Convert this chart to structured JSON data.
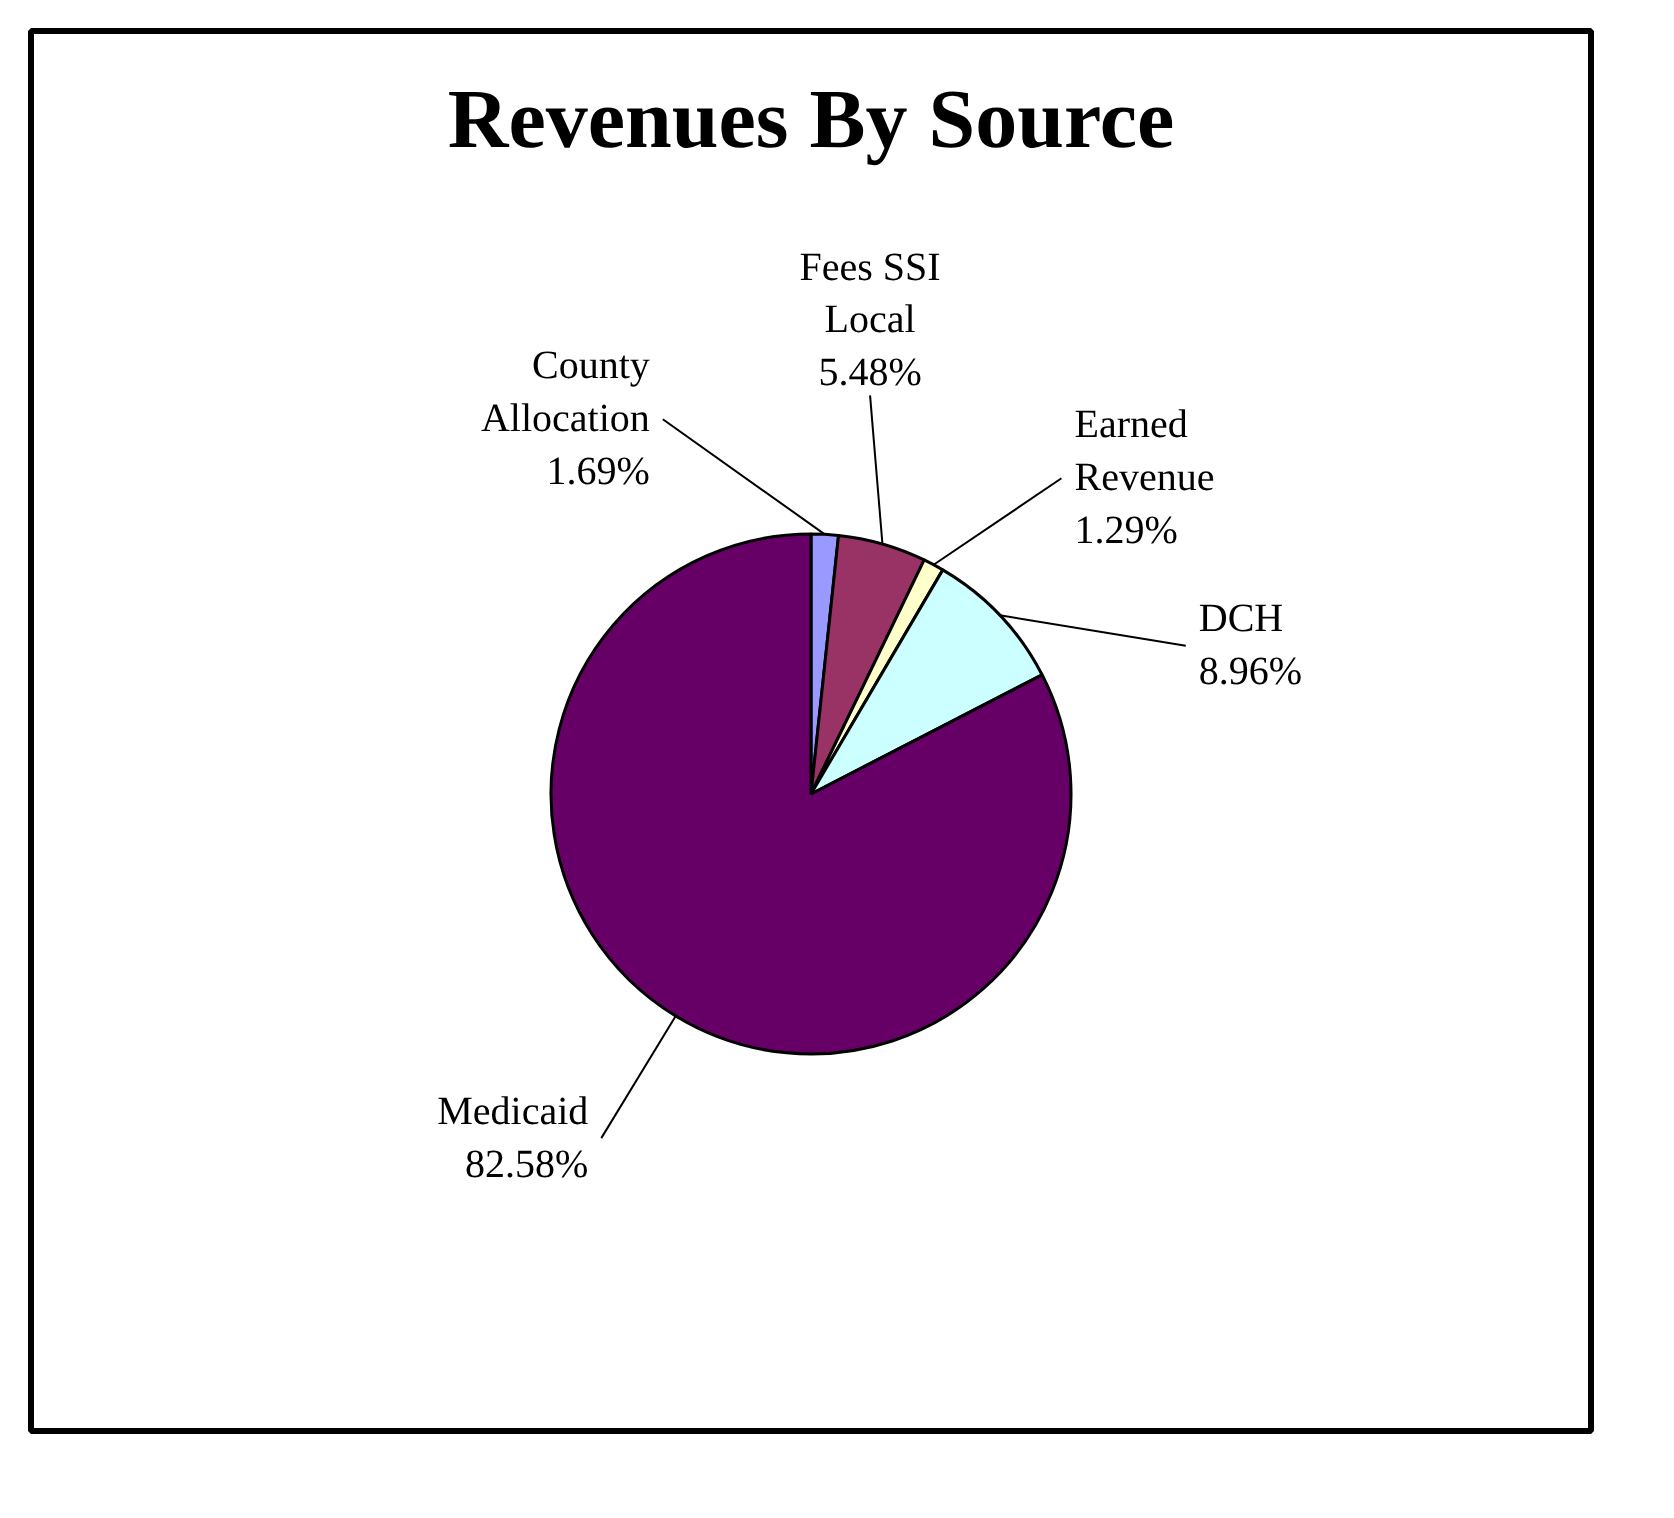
{
  "chart_data": {
    "type": "pie",
    "title": "Revenues By Source",
    "categories": [
      "County Allocation",
      "Fees SSI Local",
      "Earned Revenue",
      "DCH",
      "Medicaid"
    ],
    "values": [
      1.69,
      5.48,
      1.29,
      8.96,
      82.58
    ],
    "colors": [
      "#9999ff",
      "#993366",
      "#ffffcc",
      "#ccffff",
      "#660066"
    ],
    "value_labels": [
      "1.69%",
      "5.48%",
      "1.29%",
      "8.96%",
      "82.58%"
    ],
    "legend": false
  }
}
